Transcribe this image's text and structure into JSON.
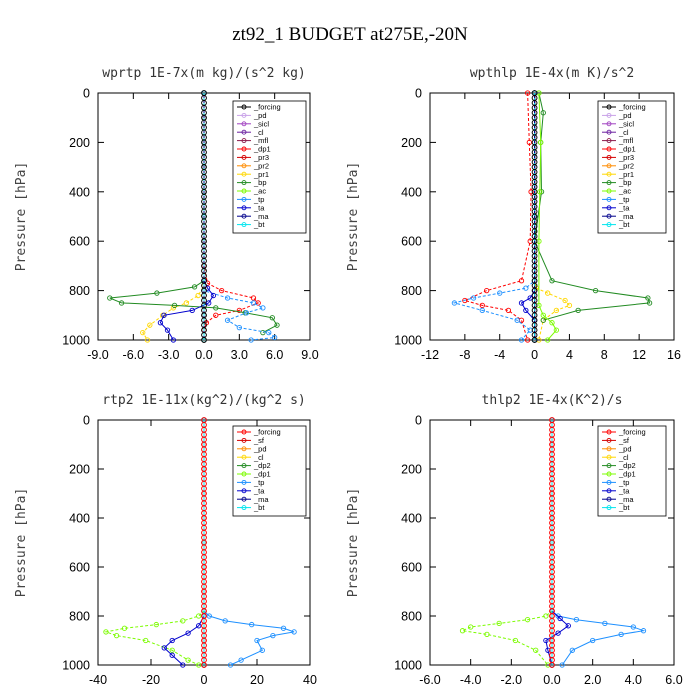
{
  "title": "zt92_1  BUDGET at275E,-20N",
  "chart_data": [
    {
      "type": "line",
      "title": "wprtp  1E-7x(m kg)/(s^2 kg)",
      "ylabel": "Pressure [hPa]",
      "xlim": [
        -9,
        9
      ],
      "ylim": [
        1000,
        0
      ],
      "xticks": [
        "-9.0",
        "-6.0",
        "-3.0",
        "0.0",
        "3.0",
        "6.0",
        "9.0"
      ],
      "yticks": [
        "0",
        "200",
        "400",
        "600",
        "800",
        "1000"
      ],
      "legend": "top-right",
      "series": [
        {
          "name": "_forcing",
          "color": "#000000",
          "marker": "o",
          "x": [
            0,
            0,
            0,
            0,
            0,
            0,
            0,
            0,
            0,
            0,
            0
          ],
          "y": [
            0,
            100,
            200,
            300,
            400,
            500,
            600,
            700,
            800,
            900,
            1000
          ]
        },
        {
          "name": "_pd",
          "color": "#c8a2e8",
          "x": [
            0,
            0,
            0
          ],
          "y": [
            0,
            500,
            1000
          ]
        },
        {
          "name": "_sicl",
          "color": "#a040c0",
          "x": [
            0,
            0,
            0
          ],
          "y": [
            0,
            500,
            1000
          ]
        },
        {
          "name": "_cl",
          "color": "#6a1fa0",
          "x": [
            0,
            0,
            0
          ],
          "y": [
            0,
            500,
            1000
          ]
        },
        {
          "name": "_mfl",
          "color": "#8b1a4a",
          "x": [
            0,
            0,
            0
          ],
          "y": [
            0,
            500,
            1000
          ]
        },
        {
          "name": "_dp1",
          "color": "#ff0000",
          "x": [
            0,
            0,
            0.3,
            1.5,
            4.2,
            4.6,
            3.0,
            1.0,
            0.2,
            0,
            0
          ],
          "y": [
            0,
            700,
            770,
            800,
            830,
            850,
            880,
            900,
            930,
            960,
            1000
          ]
        },
        {
          "name": "_pr3",
          "color": "#d40000",
          "x": [
            0,
            0,
            0
          ],
          "y": [
            0,
            500,
            1000
          ]
        },
        {
          "name": "_pr2",
          "color": "#ff8c00",
          "x": [
            0,
            0,
            0
          ],
          "y": [
            0,
            500,
            1000
          ]
        },
        {
          "name": "_pr1",
          "color": "#ffd700",
          "x": [
            0,
            0,
            -0.5,
            -1.5,
            -2.6,
            -3.5,
            -4.6,
            -5.2,
            -4.8
          ],
          "y": [
            0,
            780,
            820,
            850,
            870,
            900,
            940,
            970,
            1000
          ]
        },
        {
          "name": "_bp",
          "color": "#228b22",
          "x": [
            0,
            0,
            -0.8,
            -4.0,
            -8.0,
            -7.0,
            -2.5,
            1.0,
            3.5,
            5.8,
            6.2,
            5.0
          ],
          "y": [
            0,
            760,
            785,
            810,
            830,
            850,
            860,
            870,
            890,
            910,
            940,
            970
          ]
        },
        {
          "name": "_ac",
          "color": "#7cfc00",
          "x": [
            0,
            0,
            0
          ],
          "y": [
            0,
            500,
            1000
          ]
        },
        {
          "name": "_tp",
          "color": "#1e90ff",
          "x": [
            0,
            0,
            2.0,
            4.2,
            5.0,
            3.6,
            2.0,
            3.0,
            5.5,
            6.0,
            4.0
          ],
          "y": [
            0,
            800,
            830,
            850,
            870,
            890,
            920,
            950,
            970,
            990,
            1000
          ]
        },
        {
          "name": "_ta",
          "color": "#0000cd",
          "x": [
            0,
            0,
            0.3,
            0.8,
            0.4,
            -1.0,
            -3.4,
            -3.7,
            -3.1,
            -2.6
          ],
          "y": [
            0,
            760,
            790,
            820,
            850,
            880,
            900,
            930,
            960,
            1000
          ]
        },
        {
          "name": "_ma",
          "color": "#00008b",
          "x": [
            0,
            0,
            0
          ],
          "y": [
            0,
            500,
            1000
          ]
        },
        {
          "name": "_bt",
          "color": "#00e5ee",
          "x": [
            0,
            0,
            0
          ],
          "y": [
            0,
            500,
            1000
          ]
        }
      ]
    },
    {
      "type": "line",
      "title": "wpthlp  1E-4x(m K)/s^2",
      "ylabel": "Pressure [hPa]",
      "xlim": [
        -12,
        16
      ],
      "ylim": [
        1000,
        0
      ],
      "xticks": [
        "-12",
        "-8",
        "-4",
        "0",
        "4",
        "8",
        "12",
        "16"
      ],
      "yticks": [
        "0",
        "200",
        "400",
        "600",
        "800",
        "1000"
      ],
      "legend": "top-right",
      "series": [
        {
          "name": "_forcing",
          "color": "#000000",
          "x": [
            0,
            0,
            0
          ],
          "y": [
            0,
            500,
            1000
          ]
        },
        {
          "name": "_pd",
          "color": "#c8a2e8",
          "x": [
            0,
            0,
            0
          ],
          "y": [
            0,
            500,
            1000
          ]
        },
        {
          "name": "_sicl",
          "color": "#a040c0",
          "x": [
            0,
            0,
            0
          ],
          "y": [
            0,
            500,
            1000
          ]
        },
        {
          "name": "_cl",
          "color": "#6a1fa0",
          "x": [
            0,
            0,
            0
          ],
          "y": [
            0,
            500,
            1000
          ]
        },
        {
          "name": "_mfl",
          "color": "#8b1a4a",
          "x": [
            0,
            0,
            0
          ],
          "y": [
            0,
            500,
            1000
          ]
        },
        {
          "name": "_dp1",
          "color": "#ff0000",
          "x": [
            -0.8,
            -0.6,
            -0.4,
            -0.5,
            -1.5,
            -5.5,
            -8.0,
            -6.0,
            -3.0,
            -1.5,
            -0.8
          ],
          "y": [
            0,
            200,
            400,
            600,
            760,
            800,
            840,
            860,
            880,
            920,
            1000
          ]
        },
        {
          "name": "_pr3",
          "color": "#d40000",
          "x": [
            0,
            0,
            0
          ],
          "y": [
            0,
            500,
            1000
          ]
        },
        {
          "name": "_pr2",
          "color": "#ff8c00",
          "x": [
            0,
            0,
            0
          ],
          "y": [
            0,
            500,
            1000
          ]
        },
        {
          "name": "_pr1",
          "color": "#ffd700",
          "x": [
            0,
            0,
            0.2,
            1.5,
            3.5,
            4.0,
            2.5,
            1.0,
            0.5
          ],
          "y": [
            0,
            760,
            790,
            810,
            840,
            860,
            880,
            920,
            1000
          ]
        },
        {
          "name": "_bp",
          "color": "#228b22",
          "x": [
            0.5,
            1.0,
            0.7,
            0.8,
            0,
            2.0,
            7.0,
            13.0,
            13.2,
            5.0,
            1.0
          ],
          "y": [
            0,
            80,
            200,
            400,
            600,
            760,
            800,
            830,
            850,
            880,
            920
          ]
        },
        {
          "name": "_ac",
          "color": "#7cfc00",
          "x": [
            0.5,
            0.7,
            0.6,
            0.5,
            0.5,
            1.0,
            2.0,
            2.5,
            1.5
          ],
          "y": [
            0,
            200,
            400,
            600,
            860,
            900,
            930,
            960,
            1000
          ]
        },
        {
          "name": "_tp",
          "color": "#1e90ff",
          "x": [
            0,
            0,
            -1.0,
            -4.0,
            -7.0,
            -9.2,
            -6.0,
            -2.0,
            -0.5,
            -1.5
          ],
          "y": [
            0,
            760,
            790,
            810,
            830,
            850,
            880,
            920,
            960,
            1000
          ]
        },
        {
          "name": "_ta",
          "color": "#0000cd",
          "x": [
            0,
            0,
            -0.5,
            -1.5,
            -1.0,
            0,
            0
          ],
          "y": [
            0,
            800,
            830,
            850,
            880,
            920,
            1000
          ]
        },
        {
          "name": "_ma",
          "color": "#00008b",
          "x": [
            0,
            0,
            0
          ],
          "y": [
            0,
            500,
            1000
          ]
        },
        {
          "name": "_bt",
          "color": "#00e5ee",
          "x": [
            0,
            0,
            0
          ],
          "y": [
            0,
            500,
            1000
          ]
        }
      ]
    },
    {
      "type": "line",
      "title": "rtp2  1E-11x(kg^2)/(kg^2 s)",
      "ylabel": "Pressure [hPa]",
      "xlim": [
        -40,
        40
      ],
      "ylim": [
        1000,
        0
      ],
      "xticks": [
        "-40",
        "-20",
        "0",
        "20",
        "40"
      ],
      "yticks": [
        "0",
        "200",
        "400",
        "600",
        "800",
        "1000"
      ],
      "legend": "top-right",
      "series": [
        {
          "name": "_forcing",
          "color": "#ff0000",
          "marker": "o",
          "x": [
            0,
            0,
            0,
            0,
            0,
            0,
            0,
            0,
            0,
            0,
            0
          ],
          "y": [
            0,
            100,
            200,
            300,
            400,
            500,
            600,
            700,
            800,
            900,
            1000
          ]
        },
        {
          "name": "_sf",
          "color": "#d40000",
          "x": [
            0,
            0,
            0
          ],
          "y": [
            0,
            500,
            1000
          ]
        },
        {
          "name": "_pd",
          "color": "#ff8c00",
          "x": [
            0,
            0,
            0
          ],
          "y": [
            0,
            500,
            1000
          ]
        },
        {
          "name": "_cl",
          "color": "#ffd700",
          "x": [
            0,
            0,
            0
          ],
          "y": [
            0,
            500,
            1000
          ]
        },
        {
          "name": "_dp2",
          "color": "#228b22",
          "x": [
            0,
            0,
            0
          ],
          "y": [
            0,
            500,
            1000
          ]
        },
        {
          "name": "_dp1",
          "color": "#7cfc00",
          "x": [
            0,
            0,
            -2,
            -8,
            -18,
            -30,
            -37,
            -33,
            -22,
            -12,
            -6,
            -2
          ],
          "y": [
            0,
            780,
            800,
            820,
            835,
            850,
            865,
            880,
            900,
            940,
            980,
            1000
          ]
        },
        {
          "name": "_tp",
          "color": "#1e90ff",
          "x": [
            0,
            0,
            2,
            8,
            18,
            30,
            34,
            26,
            20,
            22,
            14,
            10
          ],
          "y": [
            0,
            780,
            800,
            820,
            835,
            850,
            865,
            880,
            900,
            940,
            980,
            1000
          ]
        },
        {
          "name": "_ta",
          "color": "#0000cd",
          "x": [
            0,
            0,
            -2,
            -6,
            -12,
            -15,
            -12,
            -8
          ],
          "y": [
            0,
            800,
            840,
            870,
            900,
            930,
            960,
            1000
          ]
        },
        {
          "name": "_ma",
          "color": "#00008b",
          "x": [
            0,
            0,
            0
          ],
          "y": [
            0,
            500,
            1000
          ]
        },
        {
          "name": "_bt",
          "color": "#00e5ee",
          "x": [
            0,
            0,
            0
          ],
          "y": [
            0,
            500,
            1000
          ]
        }
      ]
    },
    {
      "type": "line",
      "title": "thlp2  1E-4x(K^2)/s",
      "ylabel": "Pressure [hPa]",
      "xlim": [
        -6,
        6
      ],
      "ylim": [
        1000,
        0
      ],
      "xticks": [
        "-6.0",
        "-4.0",
        "-2.0",
        "0.0",
        "2.0",
        "4.0",
        "6.0"
      ],
      "yticks": [
        "0",
        "200",
        "400",
        "600",
        "800",
        "1000"
      ],
      "legend": "top-right",
      "series": [
        {
          "name": "_forcing",
          "color": "#ff0000",
          "marker": "o",
          "x": [
            0,
            0,
            0,
            0,
            0,
            0,
            0,
            0,
            0,
            0,
            0
          ],
          "y": [
            0,
            100,
            200,
            300,
            400,
            500,
            600,
            700,
            800,
            900,
            1000
          ]
        },
        {
          "name": "_sf",
          "color": "#d40000",
          "x": [
            0,
            0,
            0
          ],
          "y": [
            0,
            500,
            1000
          ]
        },
        {
          "name": "_pd",
          "color": "#ff8c00",
          "x": [
            0,
            0,
            0
          ],
          "y": [
            0,
            500,
            1000
          ]
        },
        {
          "name": "_cl",
          "color": "#ffd700",
          "x": [
            0,
            0,
            0
          ],
          "y": [
            0,
            500,
            1000
          ]
        },
        {
          "name": "_dp2",
          "color": "#228b22",
          "x": [
            0,
            0,
            0
          ],
          "y": [
            0,
            500,
            1000
          ]
        },
        {
          "name": "_dp1",
          "color": "#7cfc00",
          "x": [
            0,
            0,
            -0.3,
            -1.2,
            -2.6,
            -4.0,
            -4.4,
            -3.2,
            -1.8,
            -0.8,
            -0.2
          ],
          "y": [
            0,
            780,
            800,
            815,
            830,
            845,
            860,
            875,
            900,
            940,
            1000
          ]
        },
        {
          "name": "_tp",
          "color": "#1e90ff",
          "x": [
            0,
            0,
            0.3,
            1.2,
            2.6,
            4.0,
            4.5,
            3.4,
            2.0,
            1.0,
            0.5
          ],
          "y": [
            0,
            780,
            800,
            815,
            830,
            845,
            860,
            875,
            900,
            940,
            1000
          ]
        },
        {
          "name": "_ta",
          "color": "#0000cd",
          "x": [
            0,
            0,
            0.4,
            0.8,
            0.3,
            -0.3,
            -0.2,
            0
          ],
          "y": [
            0,
            780,
            810,
            840,
            870,
            900,
            940,
            1000
          ]
        },
        {
          "name": "_ma",
          "color": "#00008b",
          "x": [
            0,
            0,
            0
          ],
          "y": [
            0,
            500,
            1000
          ]
        },
        {
          "name": "_bt",
          "color": "#00e5ee",
          "x": [
            0,
            0,
            0
          ],
          "y": [
            0,
            500,
            1000
          ]
        }
      ]
    }
  ]
}
